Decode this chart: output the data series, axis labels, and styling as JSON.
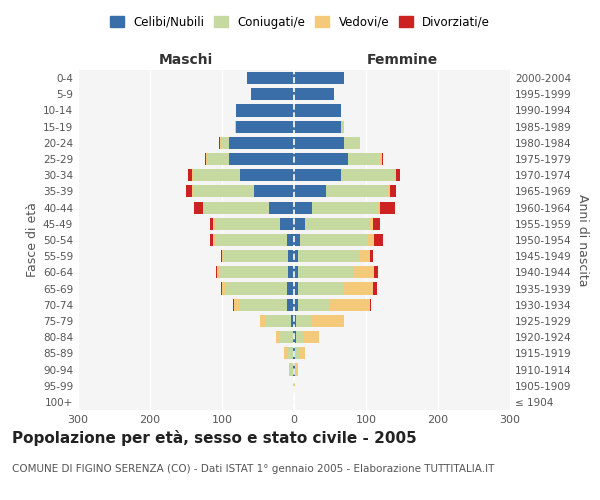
{
  "age_groups": [
    "100+",
    "95-99",
    "90-94",
    "85-89",
    "80-84",
    "75-79",
    "70-74",
    "65-69",
    "60-64",
    "55-59",
    "50-54",
    "45-49",
    "40-44",
    "35-39",
    "30-34",
    "25-29",
    "20-24",
    "15-19",
    "10-14",
    "5-9",
    "0-4"
  ],
  "birth_years": [
    "≤ 1904",
    "1905-1909",
    "1910-1914",
    "1915-1919",
    "1920-1924",
    "1925-1929",
    "1930-1934",
    "1935-1939",
    "1940-1944",
    "1945-1949",
    "1950-1954",
    "1955-1959",
    "1960-1964",
    "1965-1969",
    "1970-1974",
    "1975-1979",
    "1980-1984",
    "1985-1989",
    "1990-1994",
    "1995-1999",
    "2000-2004"
  ],
  "male": {
    "celibi": [
      0,
      0,
      1,
      2,
      2,
      4,
      10,
      10,
      8,
      8,
      10,
      20,
      35,
      55,
      75,
      90,
      90,
      80,
      80,
      60,
      65
    ],
    "coniugati": [
      0,
      1,
      4,
      8,
      18,
      35,
      65,
      85,
      95,
      90,
      100,
      90,
      90,
      85,
      65,
      30,
      12,
      2,
      0,
      0,
      0
    ],
    "vedovi": [
      0,
      1,
      2,
      4,
      5,
      8,
      8,
      5,
      4,
      2,
      2,
      2,
      2,
      2,
      2,
      2,
      1,
      0,
      0,
      0,
      0
    ],
    "divorziati": [
      0,
      0,
      0,
      0,
      0,
      0,
      2,
      2,
      2,
      2,
      5,
      4,
      12,
      8,
      5,
      2,
      1,
      0,
      0,
      0,
      0
    ]
  },
  "female": {
    "nubili": [
      0,
      0,
      1,
      2,
      3,
      3,
      5,
      5,
      5,
      5,
      8,
      15,
      25,
      45,
      65,
      75,
      70,
      65,
      65,
      55,
      70
    ],
    "coniugate": [
      0,
      0,
      2,
      5,
      10,
      22,
      45,
      65,
      78,
      85,
      95,
      90,
      90,
      85,
      75,
      45,
      20,
      5,
      0,
      0,
      0
    ],
    "vedove": [
      0,
      1,
      3,
      8,
      22,
      45,
      55,
      40,
      28,
      15,
      8,
      5,
      5,
      3,
      2,
      2,
      1,
      0,
      0,
      0,
      0
    ],
    "divorziate": [
      0,
      0,
      0,
      0,
      0,
      0,
      2,
      5,
      5,
      5,
      12,
      10,
      20,
      8,
      5,
      2,
      1,
      0,
      0,
      0,
      0
    ]
  },
  "colors": {
    "celibi": "#3a6ea8",
    "coniugati": "#c5d9a0",
    "vedovi": "#f5c97a",
    "divorziati": "#cc2222"
  },
  "xlim": 300,
  "title": "Popolazione per età, sesso e stato civile - 2005",
  "subtitle": "COMUNE DI FIGINO SERENZA (CO) - Dati ISTAT 1° gennaio 2005 - Elaborazione TUTTITALIA.IT",
  "ylabel_left": "Fasce di età",
  "ylabel_right": "Anni di nascita",
  "xlabel_left": "Maschi",
  "xlabel_right": "Femmine",
  "background_color": "#f5f5f5"
}
